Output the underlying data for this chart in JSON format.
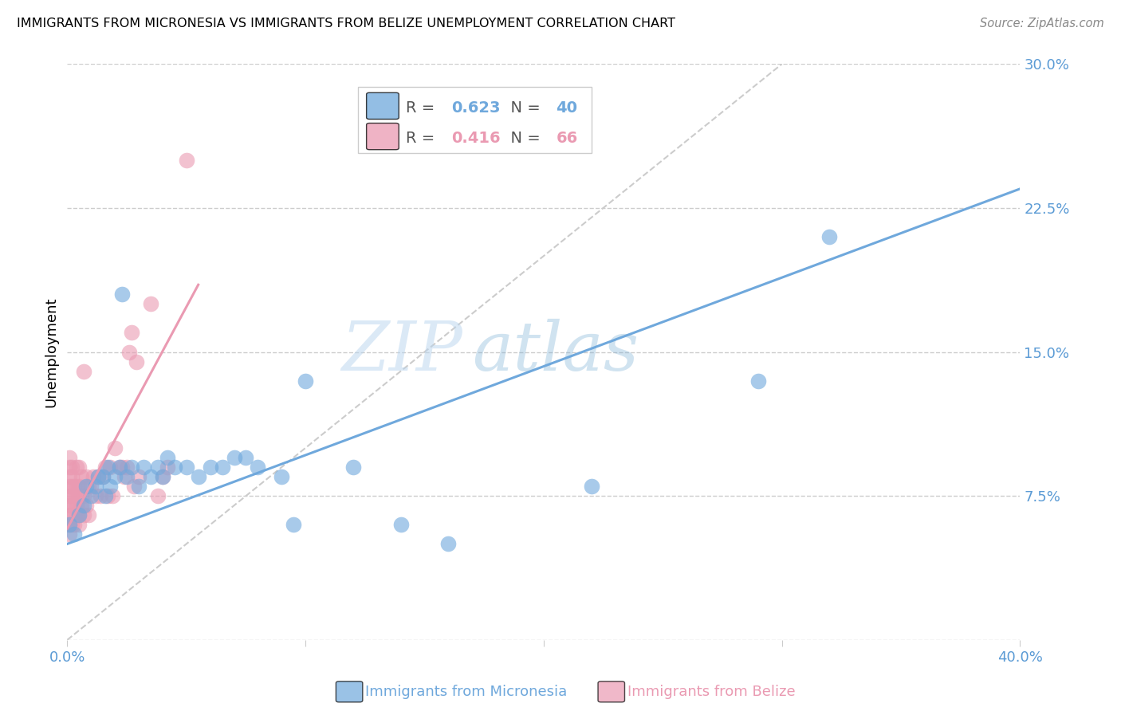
{
  "title": "IMMIGRANTS FROM MICRONESIA VS IMMIGRANTS FROM BELIZE UNEMPLOYMENT CORRELATION CHART",
  "source": "Source: ZipAtlas.com",
  "ylabel": "Unemployment",
  "xlim": [
    0.0,
    0.4
  ],
  "ylim": [
    0.0,
    0.3
  ],
  "xticks": [
    0.0,
    0.1,
    0.2,
    0.3,
    0.4
  ],
  "xticklabels": [
    "0.0%",
    "",
    "",
    "",
    "40.0%"
  ],
  "yticks": [
    0.0,
    0.075,
    0.15,
    0.225,
    0.3
  ],
  "yticklabels": [
    "",
    "7.5%",
    "15.0%",
    "22.5%",
    "30.0%"
  ],
  "micronesia_color": "#6fa8dc",
  "belize_color": "#ea9ab2",
  "micronesia_R": 0.623,
  "micronesia_N": 40,
  "belize_R": 0.416,
  "belize_N": 66,
  "watermark_zip": "ZIP",
  "watermark_atlas": "atlas",
  "mic_x": [
    0.001,
    0.003,
    0.005,
    0.007,
    0.008,
    0.01,
    0.012,
    0.013,
    0.015,
    0.016,
    0.017,
    0.018,
    0.02,
    0.022,
    0.023,
    0.025,
    0.027,
    0.03,
    0.032,
    0.035,
    0.038,
    0.04,
    0.042,
    0.045,
    0.05,
    0.055,
    0.06,
    0.065,
    0.07,
    0.075,
    0.08,
    0.09,
    0.095,
    0.1,
    0.12,
    0.14,
    0.16,
    0.22,
    0.29,
    0.32
  ],
  "mic_y": [
    0.06,
    0.055,
    0.065,
    0.07,
    0.08,
    0.075,
    0.08,
    0.085,
    0.085,
    0.075,
    0.09,
    0.08,
    0.085,
    0.09,
    0.18,
    0.085,
    0.09,
    0.08,
    0.09,
    0.085,
    0.09,
    0.085,
    0.095,
    0.09,
    0.09,
    0.085,
    0.09,
    0.09,
    0.095,
    0.095,
    0.09,
    0.085,
    0.06,
    0.135,
    0.09,
    0.06,
    0.05,
    0.08,
    0.135,
    0.21
  ],
  "bel_x": [
    0.001,
    0.001,
    0.001,
    0.001,
    0.001,
    0.001,
    0.001,
    0.001,
    0.001,
    0.002,
    0.002,
    0.002,
    0.002,
    0.002,
    0.002,
    0.002,
    0.003,
    0.003,
    0.003,
    0.003,
    0.003,
    0.004,
    0.004,
    0.004,
    0.004,
    0.004,
    0.005,
    0.005,
    0.005,
    0.005,
    0.005,
    0.006,
    0.006,
    0.006,
    0.007,
    0.007,
    0.007,
    0.008,
    0.008,
    0.009,
    0.009,
    0.01,
    0.011,
    0.012,
    0.013,
    0.014,
    0.015,
    0.016,
    0.017,
    0.018,
    0.019,
    0.02,
    0.022,
    0.023,
    0.024,
    0.025,
    0.026,
    0.027,
    0.028,
    0.029,
    0.03,
    0.035,
    0.038,
    0.04,
    0.042,
    0.05
  ],
  "bel_y": [
    0.055,
    0.06,
    0.065,
    0.07,
    0.075,
    0.08,
    0.085,
    0.09,
    0.095,
    0.06,
    0.065,
    0.07,
    0.075,
    0.08,
    0.085,
    0.09,
    0.06,
    0.065,
    0.07,
    0.075,
    0.08,
    0.065,
    0.07,
    0.075,
    0.08,
    0.09,
    0.06,
    0.065,
    0.075,
    0.08,
    0.09,
    0.07,
    0.075,
    0.085,
    0.065,
    0.075,
    0.14,
    0.07,
    0.085,
    0.065,
    0.08,
    0.08,
    0.085,
    0.075,
    0.085,
    0.075,
    0.085,
    0.09,
    0.075,
    0.09,
    0.075,
    0.1,
    0.09,
    0.09,
    0.085,
    0.09,
    0.15,
    0.16,
    0.08,
    0.145,
    0.085,
    0.175,
    0.075,
    0.085,
    0.09,
    0.25
  ],
  "mic_line_x": [
    0.0,
    0.4
  ],
  "mic_line_y": [
    0.05,
    0.235
  ],
  "bel_line_x": [
    0.0,
    0.055
  ],
  "bel_line_y": [
    0.058,
    0.185
  ]
}
